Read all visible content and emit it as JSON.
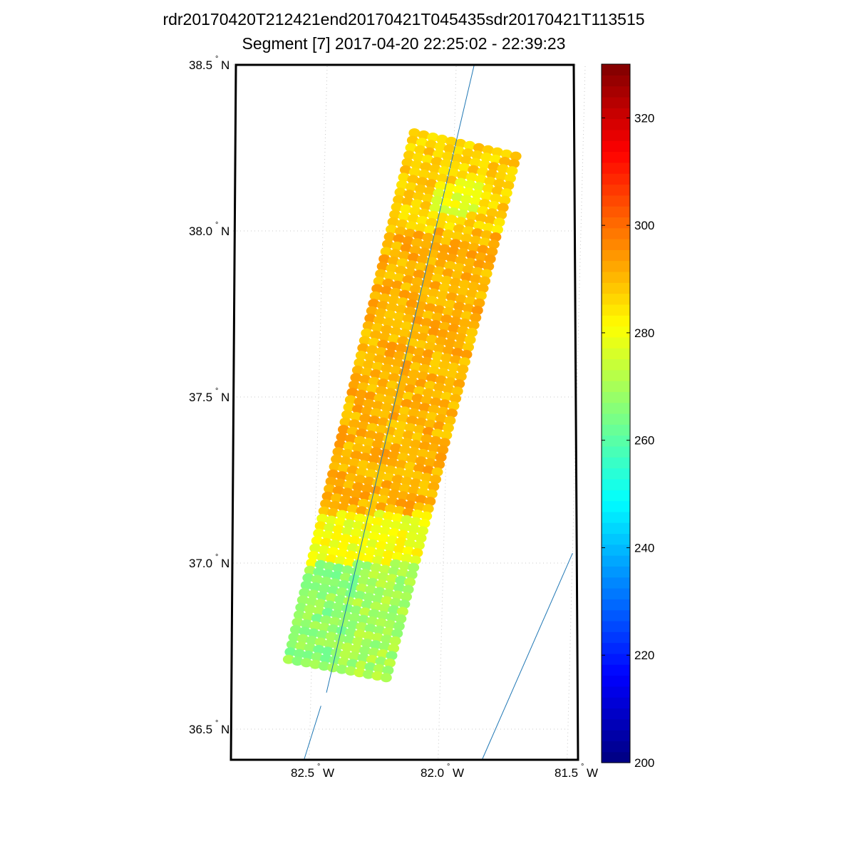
{
  "title_line1": "rdr20170420T212421end20170421T045435sdr20170421T113515",
  "title_line2": "Segment [7] 2017-04-20 22:25:02 - 22:39:23",
  "chart_data": {
    "type": "scatter",
    "projection": "map",
    "title": "rdr20170420T212421end20170421T045435sdr20170421T113515\nSegment [7] 2017-04-20 22:25:02 - 22:39:23",
    "xlabel": "",
    "ylabel": "",
    "grid": true,
    "lat_ticks": [
      {
        "value": 38.5,
        "label": "38.5",
        "hemi": "N"
      },
      {
        "value": 38.0,
        "label": "38.0",
        "hemi": "N"
      },
      {
        "value": 37.5,
        "label": "37.5",
        "hemi": "N"
      },
      {
        "value": 37.0,
        "label": "37.0",
        "hemi": "N"
      },
      {
        "value": 36.5,
        "label": "36.5",
        "hemi": "N"
      }
    ],
    "lon_ticks": [
      {
        "value": -82.5,
        "label": "82.5",
        "hemi": "W"
      },
      {
        "value": -82.0,
        "label": "82.0",
        "hemi": "W"
      },
      {
        "value": -81.5,
        "label": "81.5",
        "hemi": "W"
      }
    ],
    "swath": {
      "description_free": true,
      "rows": 72,
      "cols": 12,
      "corner_top_left": [
        -82.155,
        38.295
      ],
      "corner_top_right": [
        -81.76,
        38.225
      ],
      "corner_bottom_left": [
        -82.59,
        36.71
      ],
      "corner_bottom_right": [
        -82.21,
        36.655
      ],
      "value_zones": [
        {
          "lat_from": 38.3,
          "lat_to": 38.0,
          "value": 287
        },
        {
          "lat_from": 38.0,
          "lat_to": 37.15,
          "value": 291
        },
        {
          "lat_from": 37.15,
          "lat_to": 37.0,
          "value": 280
        },
        {
          "lat_from": 37.0,
          "lat_to": 36.65,
          "value": 270
        }
      ]
    },
    "track_lines": [
      {
        "name": "",
        "color": "#1f77b4",
        "points": [
          [
            -81.93,
            38.5
          ],
          [
            -82.44,
            36.61
          ]
        ]
      },
      {
        "name": "",
        "color": "#1f77b4",
        "points": [
          [
            -82.46,
            36.57
          ],
          [
            -82.52,
            36.4
          ]
        ]
      },
      {
        "name": "",
        "color": "#1f77b4",
        "points": [
          [
            -81.5,
            37.03
          ],
          [
            -81.83,
            36.4
          ]
        ]
      }
    ],
    "colorbar": {
      "min": 200,
      "max": 330,
      "ticks": [
        200,
        220,
        240,
        260,
        280,
        300,
        320
      ],
      "colormap": "jet"
    }
  }
}
